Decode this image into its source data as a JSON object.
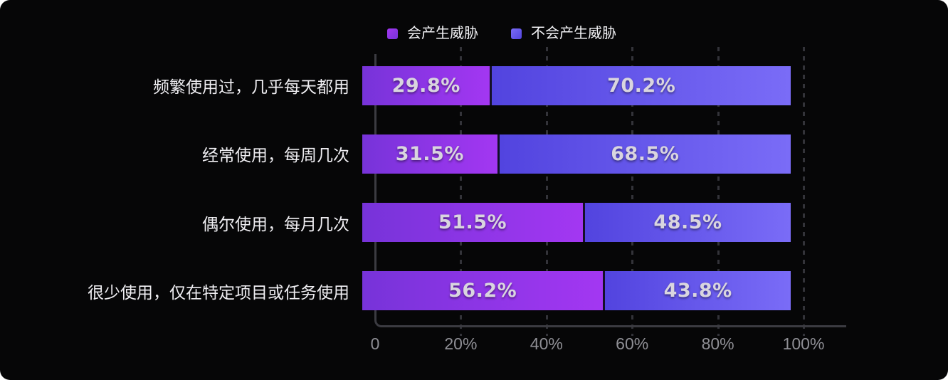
{
  "chart_data": {
    "type": "bar",
    "variant": "horizontal-stacked-100",
    "title": "",
    "legend_position": "top",
    "grid": "dashed-vertical",
    "legend": [
      {
        "label": "会产生威胁",
        "color_start": "#7733d9",
        "color_end": "#a337f2"
      },
      {
        "label": "不会产生威胁",
        "color_start": "#5244df",
        "color_end": "#7a6cf7"
      }
    ],
    "categories": [
      "频繁使用过，几乎每天都用",
      "经常使用，每周几次",
      "偶尔使用，每月几次",
      "很少使用，仅在特定项目或任务使用"
    ],
    "series": [
      {
        "name": "会产生威胁",
        "values": [
          29.8,
          31.5,
          51.5,
          56.2
        ]
      },
      {
        "name": "不会产生威胁",
        "values": [
          70.2,
          68.5,
          48.5,
          43.8
        ]
      }
    ],
    "value_labels": [
      [
        "29.8%",
        "70.2%"
      ],
      [
        "31.5%",
        "68.5%"
      ],
      [
        "51.5%",
        "48.5%"
      ],
      [
        "56.2%",
        "43.8%"
      ]
    ],
    "x_ticks": [
      "0",
      "20%",
      "40%",
      "60%",
      "80%",
      "100%"
    ],
    "x_tick_positions": [
      0,
      20,
      40,
      60,
      80,
      100
    ],
    "xlim": [
      0,
      100
    ]
  },
  "colors": {
    "background": "#060607",
    "axis": "#3b3b41",
    "gridline": "#333339",
    "category_label": "#efeef2",
    "value_label": "#d9d5df",
    "tick_label": "#8f8f95",
    "segment_divider": "#141028"
  }
}
